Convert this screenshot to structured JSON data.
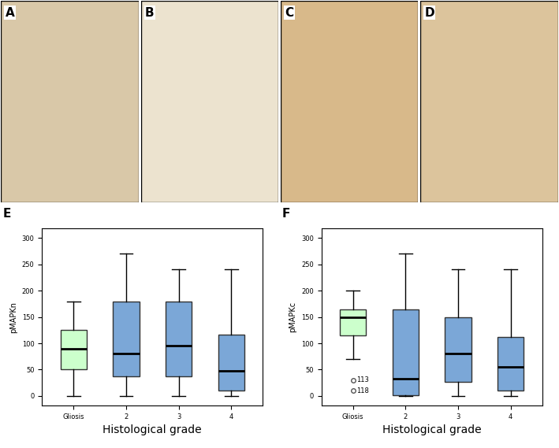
{
  "images": [
    {
      "panel_label": "A",
      "color": "#d9c8a8"
    },
    {
      "panel_label": "B",
      "color": "#ece3cf"
    },
    {
      "panel_label": "C",
      "color": "#d8b98a"
    },
    {
      "panel_label": "D",
      "color": "#dcc49c"
    }
  ],
  "chart_data": [
    {
      "type": "box",
      "panel_label": "E",
      "y_label": "pMAPKn",
      "x_label": "Histological grade",
      "categories": [
        "Gliosis",
        "2",
        "3",
        "4"
      ],
      "colors": [
        "#ccffcc",
        "#7ba7d7",
        "#7ba7d7",
        "#7ba7d7"
      ],
      "boxes": [
        {
          "whislo": 0,
          "q1": 50,
          "med": 90,
          "q3": 125,
          "whishi": 180,
          "fliers": []
        },
        {
          "whislo": 0,
          "q1": 37,
          "med": 80,
          "q3": 180,
          "whishi": 270,
          "fliers": []
        },
        {
          "whislo": 0,
          "q1": 37,
          "med": 95,
          "q3": 180,
          "whishi": 240,
          "fliers": []
        },
        {
          "whislo": 0,
          "q1": 10,
          "med": 48,
          "q3": 117,
          "whishi": 240,
          "fliers": []
        }
      ],
      "ylim": [
        -18,
        318
      ],
      "yticks": [
        0,
        50,
        100,
        150,
        200,
        250,
        300
      ]
    },
    {
      "type": "box",
      "panel_label": "F",
      "y_label": "pMAPKc",
      "x_label": "Histological grade",
      "categories": [
        "Gliosis",
        "2",
        "3",
        "4"
      ],
      "colors": [
        "#ccffcc",
        "#7ba7d7",
        "#7ba7d7",
        "#7ba7d7"
      ],
      "boxes": [
        {
          "whislo": 70,
          "q1": 115,
          "med": 150,
          "q3": 165,
          "whishi": 200,
          "fliers": [
            {
              "value": 30,
              "label": "113"
            },
            {
              "value": 10,
              "label": "118"
            }
          ]
        },
        {
          "whislo": 0,
          "q1": 2,
          "med": 33,
          "q3": 165,
          "whishi": 270,
          "fliers": []
        },
        {
          "whislo": 0,
          "q1": 27,
          "med": 80,
          "q3": 150,
          "whishi": 240,
          "fliers": []
        },
        {
          "whislo": 0,
          "q1": 10,
          "med": 55,
          "q3": 112,
          "whishi": 240,
          "fliers": []
        }
      ],
      "ylim": [
        -18,
        318
      ],
      "yticks": [
        0,
        50,
        100,
        150,
        200,
        250,
        300
      ]
    }
  ]
}
